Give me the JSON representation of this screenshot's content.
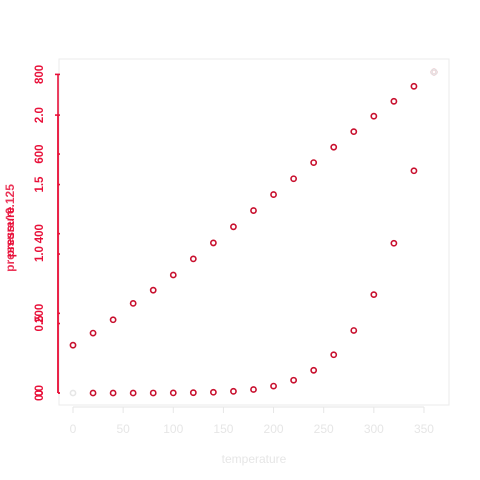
{
  "chart_data": {
    "type": "scatter",
    "title": "",
    "xlabel": "temperature",
    "ylabel_left": "pressure",
    "ylabel_right": "pressure^0.125",
    "x_ticks": [
      "0",
      "50",
      "100",
      "150",
      "200",
      "250",
      "300",
      "350"
    ],
    "x_tick_values": [
      0,
      50,
      100,
      150,
      200,
      250,
      300,
      350
    ],
    "xlim": [
      0,
      360
    ],
    "y1_ticks": [
      "0",
      "200",
      "400",
      "600",
      "800"
    ],
    "y1_tick_values": [
      0,
      200,
      400,
      600,
      800
    ],
    "y1lim": [
      0,
      806
    ],
    "y2_ticks": [
      "0.0",
      "0.5",
      "1.0",
      "1.5",
      "2.0"
    ],
    "y2_tick_values": [
      0.0,
      0.5,
      1.0,
      1.5,
      2.0
    ],
    "y2lim": [
      0,
      2.31
    ],
    "grid": false,
    "colors": {
      "accent": "#e8113a",
      "points": "#c8102e",
      "faint": "#e6e6e6",
      "frame": "#ebebeb"
    },
    "series": [
      {
        "axis": "left",
        "x": [
          0,
          20,
          40,
          60,
          80,
          100,
          120,
          140,
          160,
          180,
          200,
          220,
          240,
          260,
          280,
          300,
          320,
          340,
          360
        ],
        "y": [
          0.0002,
          0.0012,
          0.006,
          0.03,
          0.09,
          0.27,
          0.75,
          1.85,
          4.2,
          8.8,
          17.3,
          32.1,
          57.0,
          96.0,
          157.0,
          247.0,
          376.0,
          558.0,
          806.0
        ]
      },
      {
        "axis": "right",
        "x": [
          0,
          20,
          40,
          60,
          80,
          100,
          120,
          140,
          160,
          180,
          200,
          220,
          240,
          260,
          280,
          300,
          320,
          340,
          360
        ],
        "y": [
          0.344,
          0.431,
          0.527,
          0.645,
          0.74,
          0.849,
          0.965,
          1.08,
          1.196,
          1.313,
          1.428,
          1.542,
          1.658,
          1.769,
          1.881,
          1.992,
          2.099,
          2.207,
          2.31
        ]
      }
    ]
  }
}
